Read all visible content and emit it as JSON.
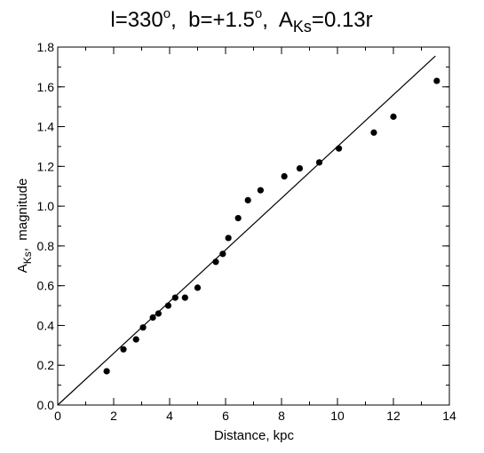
{
  "chart_data": {
    "type": "scatter",
    "title": {
      "l_label": "l=330",
      "l_sup": "o",
      "b_label": "b=+1.5",
      "b_sup": "o",
      "a_main": "A",
      "a_sub": "Ks",
      "a_value": "=0.13r"
    },
    "xlabel": "Distance, kpc",
    "ylabel": {
      "main": "A",
      "sub": "Ks",
      "rest": ",  magnitude"
    },
    "xlim": [
      0,
      14
    ],
    "ylim": [
      0,
      1.8
    ],
    "xticks": [
      "0",
      "2",
      "4",
      "6",
      "8",
      "10",
      "12",
      "14"
    ],
    "yticks": [
      "0.0",
      "0.2",
      "0.4",
      "0.6",
      "0.8",
      "1.0",
      "1.2",
      "1.4",
      "1.6",
      "1.8"
    ],
    "x_minor_step": 1,
    "y_minor_step": 0.1,
    "grid": false,
    "legend": "none",
    "points": [
      {
        "x": 1.75,
        "y": 0.17
      },
      {
        "x": 2.35,
        "y": 0.28
      },
      {
        "x": 2.8,
        "y": 0.33
      },
      {
        "x": 3.05,
        "y": 0.39
      },
      {
        "x": 3.4,
        "y": 0.44
      },
      {
        "x": 3.6,
        "y": 0.46
      },
      {
        "x": 3.95,
        "y": 0.5
      },
      {
        "x": 4.2,
        "y": 0.54
      },
      {
        "x": 4.55,
        "y": 0.54
      },
      {
        "x": 5.0,
        "y": 0.59
      },
      {
        "x": 5.65,
        "y": 0.72
      },
      {
        "x": 5.9,
        "y": 0.76
      },
      {
        "x": 6.1,
        "y": 0.84
      },
      {
        "x": 6.45,
        "y": 0.94
      },
      {
        "x": 6.8,
        "y": 1.03
      },
      {
        "x": 7.25,
        "y": 1.08
      },
      {
        "x": 8.1,
        "y": 1.15
      },
      {
        "x": 8.65,
        "y": 1.19
      },
      {
        "x": 9.35,
        "y": 1.22
      },
      {
        "x": 10.05,
        "y": 1.29
      },
      {
        "x": 11.3,
        "y": 1.37
      },
      {
        "x": 12.0,
        "y": 1.45
      },
      {
        "x": 13.55,
        "y": 1.63
      }
    ],
    "fit_line": {
      "slope": 0.13,
      "x_range": [
        0,
        13.5
      ]
    },
    "colors": {
      "ink": "#000000",
      "background": "#ffffff"
    }
  }
}
